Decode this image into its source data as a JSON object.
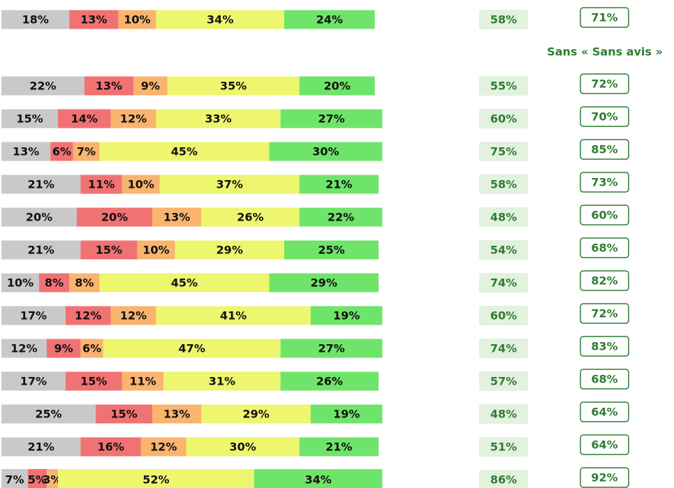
{
  "chart_data": {
    "type": "bar",
    "stacked": true,
    "xlim": [
      0,
      100
    ],
    "series": [
      {
        "color": "#c9c9c9",
        "values": [
          18,
          22,
          15,
          13,
          21,
          20,
          21,
          10,
          17,
          12,
          17,
          25,
          21,
          7
        ],
        "value_labels": [
          "18%",
          "22%",
          "15%",
          "13%",
          "21%",
          "20%",
          "21%",
          "10%",
          "17%",
          "12%",
          "17%",
          "25%",
          "21%",
          "7%"
        ]
      },
      {
        "color": "#f17272",
        "values": [
          13,
          13,
          14,
          6,
          11,
          20,
          15,
          8,
          12,
          9,
          15,
          15,
          16,
          5
        ],
        "value_labels": [
          "13%",
          "13%",
          "14%",
          "6%",
          "11%",
          "20%",
          "15%",
          "8%",
          "12%",
          "9%",
          "15%",
          "15%",
          "16%",
          "5%"
        ]
      },
      {
        "color": "#f9b46e",
        "values": [
          10,
          9,
          12,
          7,
          10,
          13,
          10,
          8,
          12,
          6,
          11,
          13,
          12,
          3
        ],
        "value_labels": [
          "10%",
          "9%",
          "12%",
          "7%",
          "10%",
          "13%",
          "10%",
          "8%",
          "12%",
          "6%",
          "11%",
          "13%",
          "12%",
          "3%"
        ]
      },
      {
        "color": "#eef56e",
        "values": [
          34,
          35,
          33,
          45,
          37,
          26,
          29,
          45,
          41,
          47,
          31,
          29,
          30,
          52
        ],
        "value_labels": [
          "34%",
          "35%",
          "33%",
          "45%",
          "37%",
          "26%",
          "29%",
          "45%",
          "41%",
          "47%",
          "31%",
          "29%",
          "30%",
          "52%"
        ]
      },
      {
        "color": "#6fe46a",
        "values": [
          24,
          20,
          27,
          30,
          21,
          22,
          25,
          29,
          19,
          27,
          26,
          19,
          21,
          34
        ],
        "value_labels": [
          "24%",
          "20%",
          "27%",
          "30%",
          "21%",
          "22%",
          "25%",
          "29%",
          "19%",
          "27%",
          "26%",
          "19%",
          "21%",
          "34%"
        ]
      }
    ],
    "columns": [
      {
        "color": "#2e7d32",
        "values": [
          58,
          55,
          60,
          75,
          58,
          48,
          54,
          74,
          60,
          74,
          57,
          48,
          51,
          86
        ],
        "value_labels": [
          "58%",
          "55%",
          "60%",
          "75%",
          "58%",
          "48%",
          "54%",
          "74%",
          "60%",
          "74%",
          "57%",
          "48%",
          "51%",
          "86%"
        ]
      },
      {
        "title": "Sans « Sans avis »",
        "color": "#2e7d32",
        "values": [
          71,
          72,
          70,
          85,
          73,
          60,
          68,
          82,
          72,
          83,
          68,
          64,
          64,
          92
        ],
        "value_labels": [
          "71%",
          "72%",
          "70%",
          "85%",
          "73%",
          "60%",
          "68%",
          "82%",
          "72%",
          "83%",
          "68%",
          "64%",
          "64%",
          "92%"
        ]
      }
    ]
  }
}
